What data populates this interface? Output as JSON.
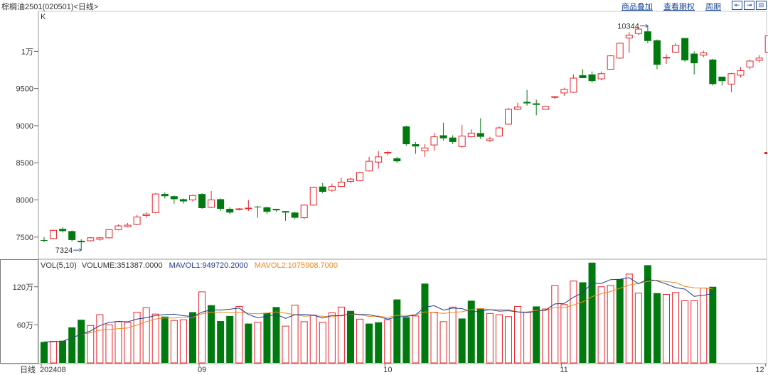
{
  "header": {
    "title": "棕榈油2501(020501)<日线>",
    "links": [
      "商品叠加",
      "查看期权",
      "周期"
    ],
    "nav_buttons": [
      "⇤",
      "⇥",
      "⊟"
    ]
  },
  "colors": {
    "up": "#e8242a",
    "down": "#007a0f",
    "mavol1": "#1f3c8a",
    "mavol2": "#f08a1e",
    "text": "#333333"
  },
  "chart_data": [
    {
      "type": "candlestick",
      "panel_label": "K",
      "y_ticks": [
        7500,
        8000,
        8500,
        9000,
        9500,
        10000
      ],
      "y_tick_labels": [
        "7500",
        "8000",
        "8500",
        "9000",
        "9500",
        "1万"
      ],
      "ylim": [
        7230,
        10520
      ],
      "annotations": [
        {
          "label": "7324",
          "value": 7324,
          "index": 4
        },
        {
          "label": "10344",
          "value": 10344,
          "index": 65
        }
      ],
      "x_tick_labels": [
        {
          "label": "202408",
          "index": 0
        },
        {
          "label": "09",
          "index": 17
        },
        {
          "label": "10",
          "index": 37
        },
        {
          "label": "11",
          "index": 56
        },
        {
          "label": "12",
          "index": 78
        }
      ],
      "candles": [
        [
          7460,
          7450,
          7500,
          7430
        ],
        [
          7480,
          7590,
          7600,
          7470
        ],
        [
          7610,
          7580,
          7630,
          7560
        ],
        [
          7580,
          7460,
          7590,
          7440
        ],
        [
          7450,
          7430,
          7470,
          7324
        ],
        [
          7450,
          7490,
          7500,
          7440
        ],
        [
          7470,
          7490,
          7500,
          7450
        ],
        [
          7490,
          7600,
          7610,
          7480
        ],
        [
          7600,
          7650,
          7670,
          7590
        ],
        [
          7640,
          7660,
          7690,
          7630
        ],
        [
          7670,
          7770,
          7800,
          7660
        ],
        [
          7790,
          7810,
          7830,
          7760
        ],
        [
          7830,
          8080,
          8090,
          7820
        ],
        [
          8080,
          8050,
          8100,
          8020
        ],
        [
          8050,
          8010,
          8060,
          7950
        ],
        [
          8010,
          7980,
          8020,
          7950
        ],
        [
          8000,
          8060,
          8070,
          7980
        ],
        [
          8080,
          7890,
          8090,
          7880
        ],
        [
          7900,
          8000,
          8120,
          7890
        ],
        [
          8010,
          7880,
          8020,
          7850
        ],
        [
          7880,
          7830,
          7900,
          7810
        ],
        [
          7880,
          7880,
          7890,
          7860
        ],
        [
          7880,
          7890,
          8000,
          7850
        ],
        [
          7910,
          7900,
          7920,
          7760
        ],
        [
          7900,
          7840,
          7910,
          7810
        ],
        [
          7880,
          7860,
          7880,
          7840
        ],
        [
          7850,
          7830,
          7850,
          7720
        ],
        [
          7830,
          7760,
          7840,
          7740
        ],
        [
          7760,
          7930,
          7940,
          7740
        ],
        [
          7930,
          8170,
          8180,
          7920
        ],
        [
          8180,
          8110,
          8230,
          8090
        ],
        [
          8130,
          8180,
          8220,
          8110
        ],
        [
          8180,
          8240,
          8300,
          8170
        ],
        [
          8250,
          8280,
          8300,
          8230
        ],
        [
          8260,
          8370,
          8380,
          8250
        ],
        [
          8390,
          8520,
          8580,
          8380
        ],
        [
          8510,
          8580,
          8660,
          8420
        ],
        [
          8630,
          8640,
          8660,
          8600
        ],
        [
          8560,
          8520,
          8580,
          8500
        ],
        [
          8990,
          8750,
          9000,
          8730
        ],
        [
          8750,
          8720,
          8780,
          8620
        ],
        [
          8660,
          8700,
          8750,
          8580
        ],
        [
          8740,
          8850,
          8900,
          8660
        ],
        [
          8870,
          8830,
          9040,
          8800
        ],
        [
          8840,
          8780,
          8870,
          8750
        ],
        [
          8720,
          8860,
          9010,
          8700
        ],
        [
          8850,
          8900,
          8950,
          8840
        ],
        [
          8900,
          8850,
          9100,
          8820
        ],
        [
          8800,
          8820,
          8850,
          8780
        ],
        [
          8860,
          8970,
          8990,
          8850
        ],
        [
          9020,
          9220,
          9240,
          9010
        ],
        [
          9220,
          9250,
          9310,
          9210
        ],
        [
          9320,
          9300,
          9480,
          9270
        ],
        [
          9300,
          9280,
          9350,
          9140
        ],
        [
          9220,
          9260,
          9270,
          9220
        ],
        [
          9380,
          9390,
          9400,
          9360
        ],
        [
          9440,
          9490,
          9510,
          9400
        ],
        [
          9450,
          9640,
          9690,
          9440
        ],
        [
          9680,
          9640,
          9760,
          9660
        ],
        [
          9690,
          9600,
          9730,
          9580
        ],
        [
          9630,
          9700,
          9730,
          9610
        ],
        [
          9760,
          9940,
          9950,
          9760
        ],
        [
          9910,
          10110,
          10120,
          9900
        ],
        [
          10180,
          10220,
          10260,
          9980
        ],
        [
          10240,
          10300,
          10330,
          10220
        ],
        [
          10270,
          10140,
          10344,
          10110
        ],
        [
          10150,
          9820,
          10160,
          9760
        ],
        [
          9910,
          9920,
          9960,
          9830
        ],
        [
          9990,
          10080,
          10110,
          9980
        ],
        [
          10180,
          9880,
          10180,
          9860
        ],
        [
          9970,
          9840,
          10000,
          9690
        ],
        [
          9950,
          9980,
          10010,
          9920
        ],
        [
          9890,
          9560,
          9900,
          9540
        ],
        [
          9660,
          9600,
          9660,
          9540
        ],
        [
          9560,
          9700,
          9710,
          9450
        ],
        [
          9680,
          9740,
          9790,
          9650
        ],
        [
          9790,
          9870,
          9890,
          9760
        ],
        [
          9880,
          9910,
          9950,
          9850
        ],
        [
          9990,
          10210,
          10250,
          9980
        ],
        [
          10200,
          10200,
          10280,
          10110
        ]
      ]
    },
    {
      "type": "bar",
      "panel_label": "VOL(5,10)",
      "legend": [
        {
          "name": "VOLUME",
          "label": "VOLUME:351387.0000"
        },
        {
          "name": "MAVOL1",
          "label": "MAVOL1:949720.2000"
        },
        {
          "name": "MAVOL2",
          "label": "MAVOL2:1075908.7000"
        }
      ],
      "y_ticks": [
        600000,
        1200000
      ],
      "y_tick_labels": [
        "60万",
        "120万"
      ],
      "ylim": [
        0,
        1600000
      ],
      "unit_label": "日线"
    }
  ]
}
